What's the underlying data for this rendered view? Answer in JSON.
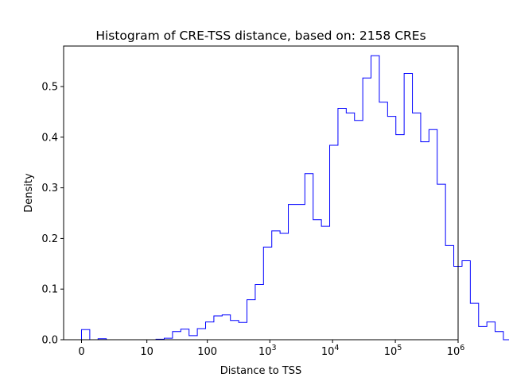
{
  "chart_data": {
    "type": "histogram",
    "title": "Histogram of CRE-TSS distance, based on: 2158 CREs",
    "xlabel": "Distance to TSS",
    "ylabel": "Density",
    "x_scale": "log10(1+x)",
    "x_ticks": [
      {
        "value": 0,
        "label": "0"
      },
      {
        "value": 10,
        "label": "10"
      },
      {
        "value": 100,
        "label": "100"
      },
      {
        "value": 1000,
        "label": "10",
        "exponent": "3"
      },
      {
        "value": 10000,
        "label": "10",
        "exponent": "4"
      },
      {
        "value": 100000,
        "label": "10",
        "exponent": "5"
      },
      {
        "value": 1000000,
        "label": "10",
        "exponent": "6"
      }
    ],
    "y_ticks": [
      0.0,
      0.1,
      0.2,
      0.3,
      0.4,
      0.5
    ],
    "y_tick_labels": [
      "0.0",
      "0.1",
      "0.2",
      "0.3",
      "0.4",
      "0.5"
    ],
    "ylim": [
      0,
      0.58
    ],
    "bin_width_log10": 0.1318,
    "bin_start_log10": 0.0,
    "density": [
      0.02,
      0.0,
      0.002,
      0.0,
      0.0,
      0.0,
      0.0,
      0.0,
      0.0,
      0.001,
      0.003,
      0.016,
      0.021,
      0.008,
      0.022,
      0.035,
      0.047,
      0.049,
      0.038,
      0.034,
      0.079,
      0.109,
      0.183,
      0.215,
      0.21,
      0.267,
      0.267,
      0.328,
      0.237,
      0.224,
      0.384,
      0.457,
      0.448,
      0.433,
      0.517,
      0.561,
      0.469,
      0.441,
      0.405,
      0.526,
      0.448,
      0.391,
      0.415,
      0.307,
      0.186,
      0.145,
      0.156,
      0.072,
      0.026,
      0.035,
      0.016,
      0.0
    ],
    "line_color": "#0000ff",
    "grid": false
  }
}
